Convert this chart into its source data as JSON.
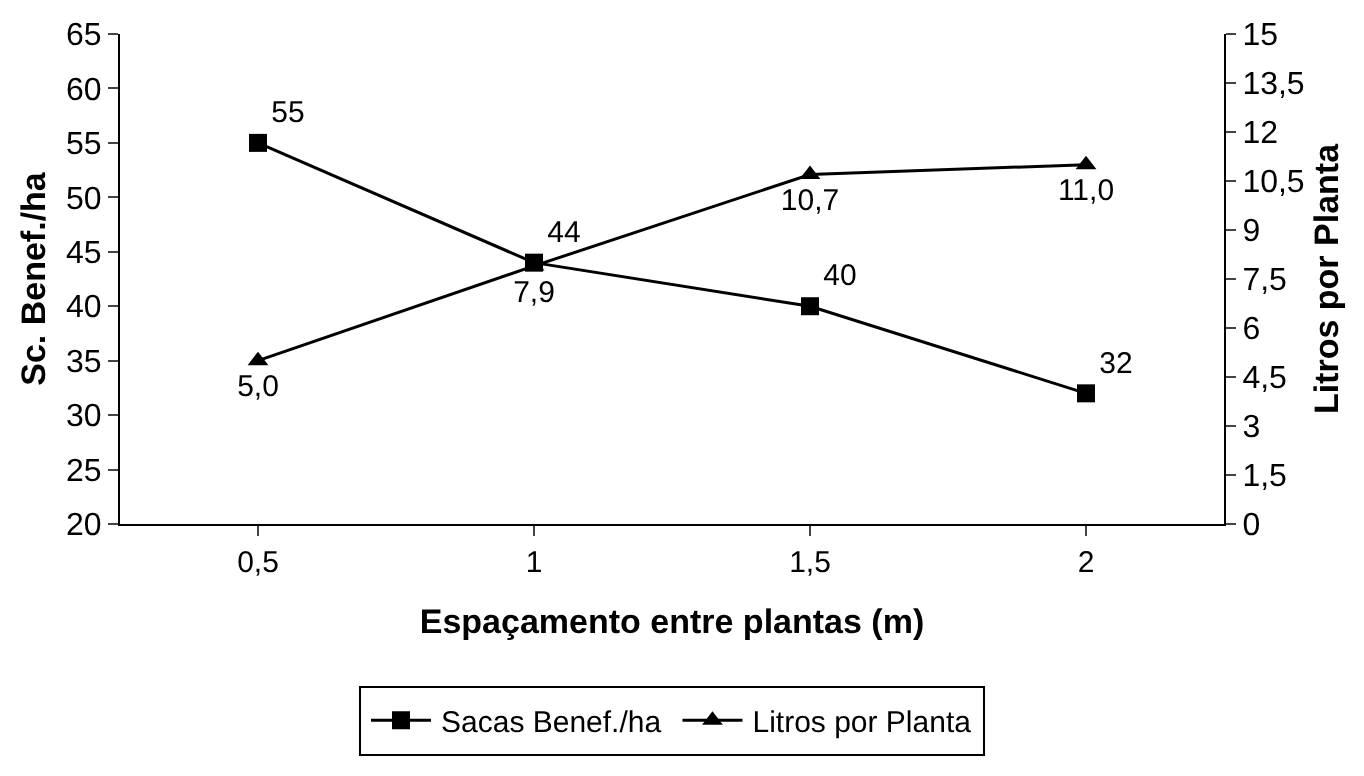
{
  "chart_data": {
    "type": "line",
    "xlabel": "Espaçamento entre plantas (m)",
    "ylabel": "Sc. Benef./ha",
    "y2label": "Litros por Planta",
    "categories": [
      "0,5",
      "1",
      "1,5",
      "2"
    ],
    "series": [
      {
        "name": "Sacas Benef./ha",
        "color": "#000000",
        "marker": "square",
        "values": [
          55,
          44,
          40,
          32
        ],
        "value_labels": [
          "55",
          "44",
          "40",
          "32"
        ]
      },
      {
        "name": "Litros por Planta",
        "color": "#000000",
        "marker": "triangle",
        "axis": "y2",
        "values": [
          5.0,
          7.9,
          10.7,
          11.0
        ],
        "value_labels": [
          "5,0",
          "7,9",
          "10,7",
          "11,0"
        ]
      }
    ],
    "ylim": [
      20,
      65
    ],
    "yticks": [
      20,
      25,
      30,
      35,
      40,
      45,
      50,
      55,
      60,
      65
    ],
    "y2lim": [
      0,
      15
    ],
    "y2ticks": [
      0,
      {
        "value": 1.5,
        "label": "1,5"
      },
      3,
      {
        "value": 4.5,
        "label": "4,5"
      },
      6,
      {
        "value": 7.5,
        "label": "7,5"
      },
      9,
      {
        "value": 10.5,
        "label": "10,5"
      },
      12,
      {
        "value": 13.5,
        "label": "13,5"
      },
      15
    ],
    "legend": "bottom",
    "line_style": "solid"
  }
}
